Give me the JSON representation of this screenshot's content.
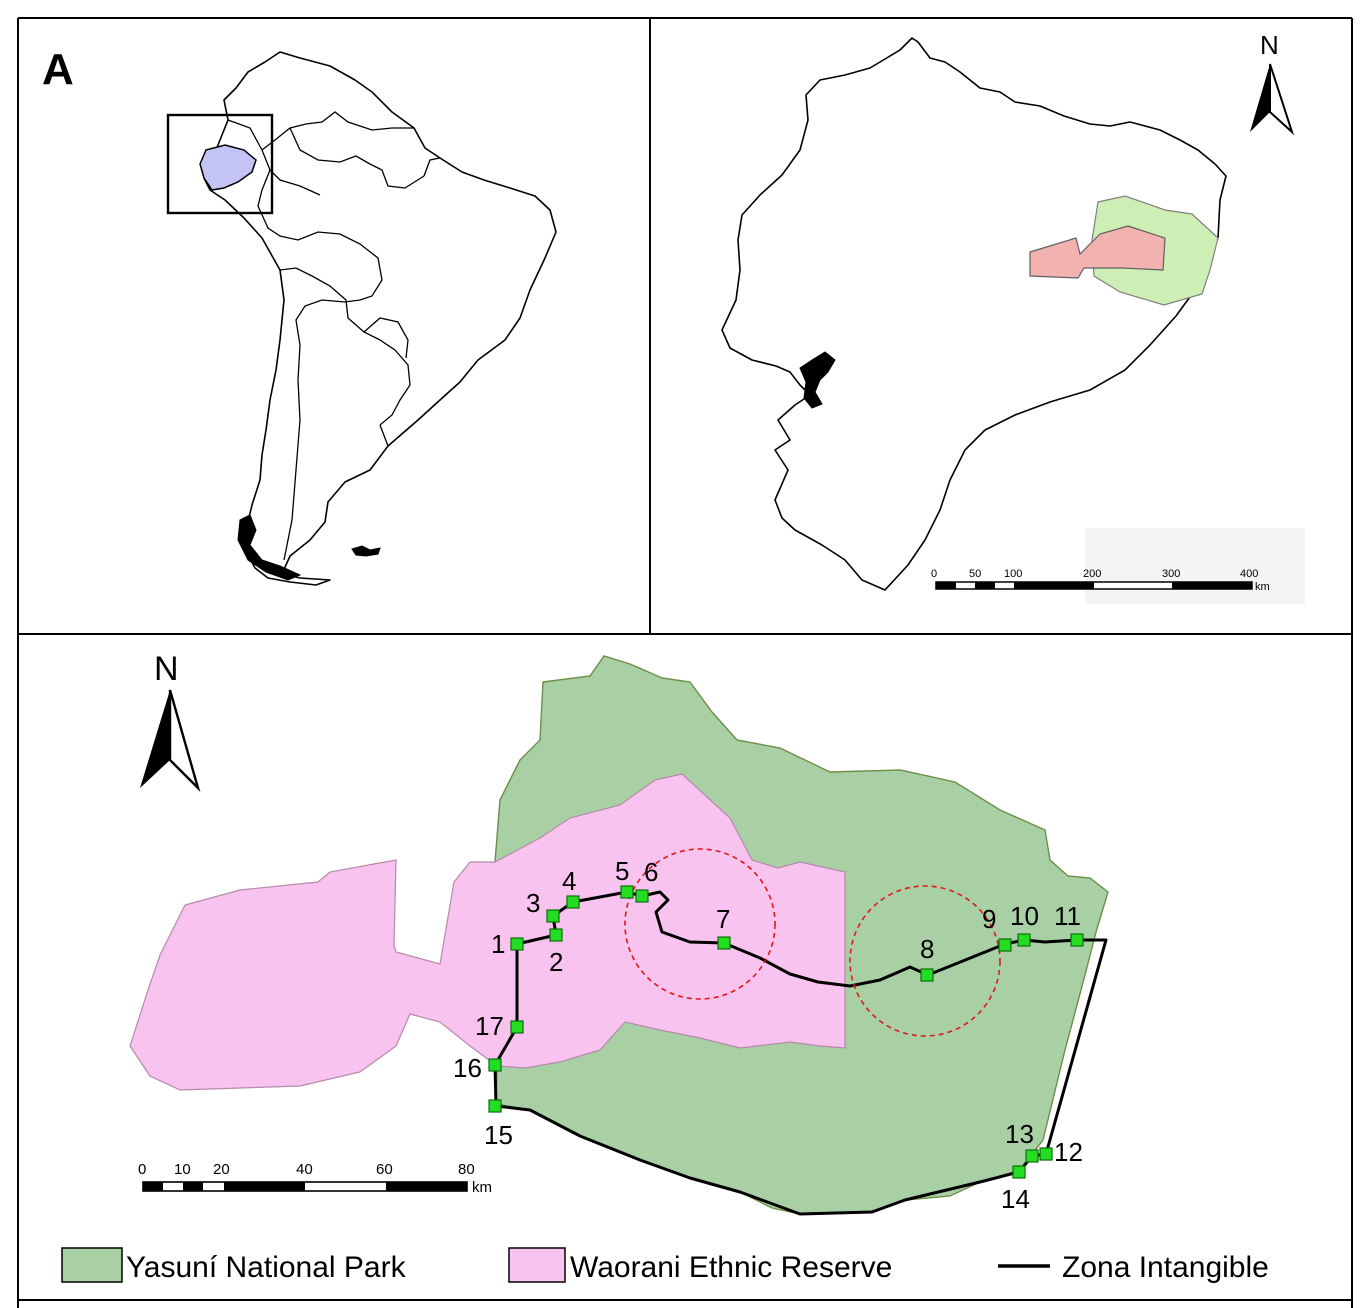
{
  "panel_label": "A",
  "north_label": "N",
  "ecuador_scale": {
    "ticks": [
      "0",
      "50",
      "100",
      "200",
      "300",
      "400"
    ],
    "unit": "km"
  },
  "detail_scale": {
    "ticks": [
      "0",
      "10",
      "20",
      "40",
      "60",
      "80"
    ],
    "unit": "km"
  },
  "points": [
    {
      "label": "1"
    },
    {
      "label": "2"
    },
    {
      "label": "3"
    },
    {
      "label": "4"
    },
    {
      "label": "5"
    },
    {
      "label": "6"
    },
    {
      "label": "7"
    },
    {
      "label": "8"
    },
    {
      "label": "9"
    },
    {
      "label": "10"
    },
    {
      "label": "11"
    },
    {
      "label": "12"
    },
    {
      "label": "13"
    },
    {
      "label": "14"
    },
    {
      "label": "15"
    },
    {
      "label": "16"
    },
    {
      "label": "17"
    }
  ],
  "legend": [
    {
      "label": "Yasuní National Park",
      "swatch": "#a9d0a5"
    },
    {
      "label": "Waorani Ethnic Reserve",
      "swatch": "#f8c3ef"
    },
    {
      "label": "Zona Intangible",
      "swatch": "#000000"
    }
  ],
  "colors": {
    "ecuador_highlight": "#c3c3f5",
    "yasuni_inset": "#cdeeb5",
    "waorani_inset": "#f2b3b0",
    "park": "#a9d0a5",
    "reserve": "#f8c3ef",
    "marker": "#22dd22",
    "buffer_circle": "#e01818"
  }
}
